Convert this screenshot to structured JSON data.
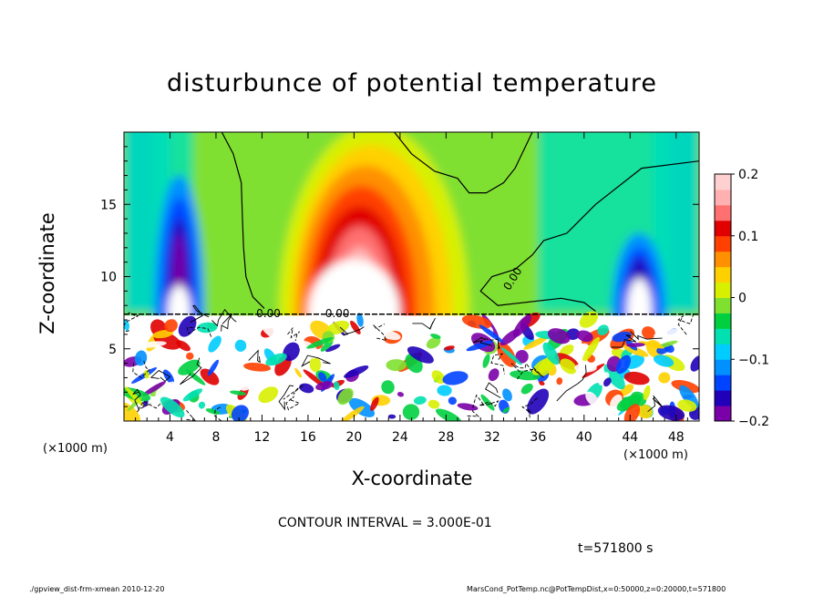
{
  "chart_data": {
    "type": "heatmap",
    "title": "disturbunce of potential temperature",
    "xlabel": "X-coordinate",
    "ylabel": "Z-coordinate",
    "x_unit_label": "(×1000 m)",
    "y_unit_label": "(×1000 m)",
    "x_ticks": [
      4,
      8,
      12,
      16,
      20,
      24,
      28,
      32,
      36,
      40,
      44,
      48
    ],
    "y_ticks": [
      5,
      10,
      15
    ],
    "xlim": [
      0,
      50
    ],
    "ylim": [
      0,
      20
    ],
    "colorbar": {
      "ticks": [
        0.2,
        0.1,
        0,
        -0.1,
        -0.2
      ],
      "tick_labels": [
        "0.2",
        "0.1",
        "0",
        "−0.1",
        "−0.2"
      ],
      "range": [
        -0.2,
        0.2
      ]
    },
    "contour_labels": [
      "0.00",
      "0.00",
      "0.00"
    ],
    "contour_interval_text": "CONTOUR INTERVAL = 3.000E-01"
  },
  "time_label": "t=571800 s",
  "footer_left": "./gpview_dist-frm-xmean 2010-12-20",
  "footer_right": "MarsCond_PotTemp.nc@PotTempDist,x=0:50000,z=0:20000,t=571800",
  "colors": {
    "scale": [
      "#7a00a8",
      "#2000b8",
      "#0044ff",
      "#0090ff",
      "#00ccff",
      "#00e0b0",
      "#00d040",
      "#80e030",
      "#d8f000",
      "#ffd000",
      "#ff9000",
      "#ff4000",
      "#e00000",
      "#ff7070",
      "#ffb0b0",
      "#ffffff"
    ]
  }
}
